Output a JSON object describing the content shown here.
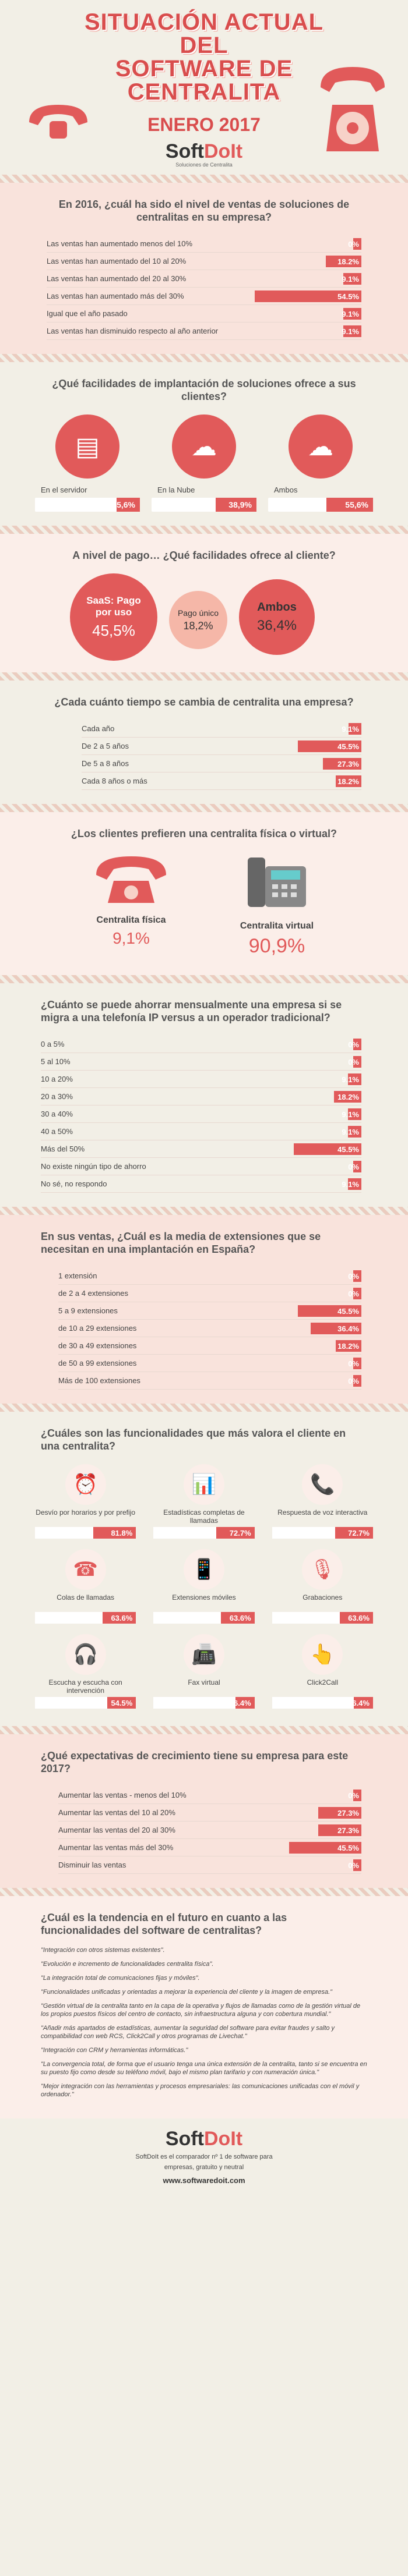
{
  "header": {
    "title_line1": "SITUACIÓN ACTUAL DEL",
    "title_line2": "SOFTWARE DE CENTRALITA",
    "date": "ENERO 2017",
    "logo_a": "Soft",
    "logo_b": "DoIt",
    "logo_sub": "Soluciones de Centralita"
  },
  "sales": {
    "question": "En 2016, ¿cuál ha sido el nivel de ventas de soluciones de centralitas en su empresa?",
    "rows": [
      {
        "label": "Las ventas han aumentado menos del 10%",
        "value": "0%",
        "pct": 0
      },
      {
        "label": "Las ventas han aumentado del 10 al 20%",
        "value": "18.2%",
        "pct": 18.2
      },
      {
        "label": "Las ventas han aumentado del 20 al 30%",
        "value": "9.1%",
        "pct": 9.1
      },
      {
        "label": "Las ventas han aumentado más del 30%",
        "value": "54.5%",
        "pct": 54.5
      },
      {
        "label": "Igual que el año pasado",
        "value": "9.1%",
        "pct": 9.1
      },
      {
        "label": "Las ventas han disminuido respecto al año anterior",
        "value": "9.1%",
        "pct": 9.1
      }
    ]
  },
  "facilities": {
    "question": "¿Qué facilidades de implantación de soluciones ofrece a sus clientes?",
    "items": [
      {
        "label": "En el servidor",
        "value": "5,6%",
        "pct": 5.6
      },
      {
        "label": "En la Nube",
        "value": "38,9%",
        "pct": 38.9
      },
      {
        "label": "Ambos",
        "value": "55,6%",
        "pct": 55.6
      }
    ]
  },
  "payment": {
    "question": "A nivel de pago… ¿Qué facilidades ofrece al cliente?",
    "items": [
      {
        "label": "SaaS: Pago por uso",
        "value": "45,5%",
        "pct": 45.5
      },
      {
        "label": "Pago único",
        "value": "18,2%",
        "pct": 18.2
      },
      {
        "label": "Ambos",
        "value": "36,4%",
        "pct": 36.4
      }
    ]
  },
  "change": {
    "question": "¿Cada cuánto tiempo se cambia de centralita una empresa?",
    "rows": [
      {
        "label": "Cada año",
        "value": "9.1%",
        "pct": 9.1
      },
      {
        "label": "De 2 a 5 años",
        "value": "45.5%",
        "pct": 45.5
      },
      {
        "label": "De 5 a 8 años",
        "value": "27.3%",
        "pct": 27.3
      },
      {
        "label": "Cada 8 años o más",
        "value": "18.2%",
        "pct": 18.2
      }
    ]
  },
  "preference": {
    "question": "¿Los clientes prefieren una centralita física o virtual?",
    "items": [
      {
        "label": "Centralita física",
        "value": "9,1%"
      },
      {
        "label": "Centralita virtual",
        "value": "90,9%"
      }
    ]
  },
  "savings": {
    "question": "¿Cuánto se puede ahorrar mensualmente una empresa si se migra a una telefonía IP versus a un operador tradicional?",
    "rows": [
      {
        "label": "0 a 5%",
        "value": "0%",
        "pct": 0
      },
      {
        "label": "5 al 10%",
        "value": "0%",
        "pct": 0
      },
      {
        "label": "10 a 20%",
        "value": "9.1%",
        "pct": 9.1
      },
      {
        "label": "20 a 30%",
        "value": "18.2%",
        "pct": 18.2
      },
      {
        "label": "30 a 40%",
        "value": "9.1%",
        "pct": 9.1
      },
      {
        "label": "40 a 50%",
        "value": "9.1%",
        "pct": 9.1
      },
      {
        "label": "Más del 50%",
        "value": "45.5%",
        "pct": 45.5
      },
      {
        "label": "No existe ningún tipo de ahorro",
        "value": "0%",
        "pct": 0
      },
      {
        "label": "No sé, no respondo",
        "value": "9.1%",
        "pct": 9.1
      }
    ]
  },
  "extensions": {
    "question": "En sus ventas, ¿Cuál es la media de extensiones que se necesitan en una implantación en España?",
    "rows": [
      {
        "label": "1 extensión",
        "value": "0%",
        "pct": 0
      },
      {
        "label": "de 2 a 4 extensiones",
        "value": "0%",
        "pct": 0
      },
      {
        "label": "5 a 9 extensiones",
        "value": "45.5%",
        "pct": 45.5
      },
      {
        "label": "de 10 a 29 extensiones",
        "value": "36.4%",
        "pct": 36.4
      },
      {
        "label": "de 30 a 49 extensiones",
        "value": "18.2%",
        "pct": 18.2
      },
      {
        "label": "de 50 a 99 extensiones",
        "value": "0%",
        "pct": 0
      },
      {
        "label": "Más de 100 extensiones",
        "value": "0%",
        "pct": 0
      }
    ]
  },
  "features": {
    "question": "¿Cuáles son las funcionalidades que más valora el cliente en una centralita?",
    "items": [
      {
        "label": "Desvío por horarios y por prefijo",
        "value": "81.8%",
        "icon": "clock-icon",
        "glyph": "⏰"
      },
      {
        "label": "Estadísticas completas de llamadas",
        "value": "72.7%",
        "icon": "chart-icon",
        "glyph": "📊"
      },
      {
        "label": "Respuesta de voz interactiva",
        "value": "72.7%",
        "icon": "voice-icon",
        "glyph": "📞"
      },
      {
        "label": "Colas de llamadas",
        "value": "63.6%",
        "icon": "queue-icon",
        "glyph": "☎"
      },
      {
        "label": "Extensiones móviles",
        "value": "63.6%",
        "icon": "mobile-icon",
        "glyph": "📱"
      },
      {
        "label": "Grabaciones",
        "value": "63.6%",
        "icon": "mic-icon",
        "glyph": "🎙"
      },
      {
        "label": "Escucha y escucha con intervención",
        "value": "54.5%",
        "icon": "headset-icon",
        "glyph": "🎧"
      },
      {
        "label": "Fax virtual",
        "value": "36.4%",
        "icon": "fax-icon",
        "glyph": "📠"
      },
      {
        "label": "Click2Call",
        "value": "36.4%",
        "icon": "click-icon",
        "glyph": "👆"
      }
    ]
  },
  "growth": {
    "question": "¿Qué expectativas de crecimiento tiene su empresa para este 2017?",
    "rows": [
      {
        "label": "Aumentar las ventas - menos del 10%",
        "value": "0%",
        "pct": 0
      },
      {
        "label": "Aumentar las ventas del 10 al 20%",
        "value": "27.3%",
        "pct": 27.3
      },
      {
        "label": "Aumentar las ventas del 20 al 30%",
        "value": "27.3%",
        "pct": 27.3
      },
      {
        "label": "Aumentar las ventas más del 30%",
        "value": "45.5%",
        "pct": 45.5
      },
      {
        "label": "Disminuir las ventas",
        "value": "0%",
        "pct": 0
      }
    ]
  },
  "trends": {
    "question": "¿Cuál es la tendencia en el futuro en cuanto a las funcionalidades del software de centralitas?",
    "quotes": [
      "\"Integración con otros sistemas existentes\".",
      "\"Evolución e incremento de funcionalidades centralita física\".",
      "\"La integración total de comunicaciones fijas y móviles\".",
      "\"Funcionalidades unificadas y orientadas a mejorar la experiencia del cliente y la imagen de empresa.\"",
      "\"Gestión virtual de la centralita tanto en la capa de la operativa y flujos de llamadas como de la gestión virtual de los propios puestos físicos del centro de contacto, sin infraestructura alguna y con cobertura mundial.\"",
      "\"Añadir más apartados de estadísticas, aumentar la seguridad del software para evitar fraudes y salto y compatibilidad con web RCS, Click2Call y otros programas de Livechat.\"",
      "\"Integración con CRM y herramientas informáticas.\"",
      "\"La convergencia total, de forma que el usuario tenga una única extensión de la centralita, tanto si se encuentra en su puesto fijo como desde su teléfono móvil, bajo el mismo plan tarifario y con numeración única.\"",
      "\"Mejor integración con las herramientas y procesos empresariales: las comunicaciones unificadas con el móvil y ordenador.\""
    ]
  },
  "footer": {
    "logo_a": "Soft",
    "logo_b": "DoIt",
    "desc_line1": "SoftDoIt es el comparador nº 1 de software para",
    "desc_line2": "empresas, gratuito y neutral",
    "web": "www.softwaredoit.com"
  }
}
